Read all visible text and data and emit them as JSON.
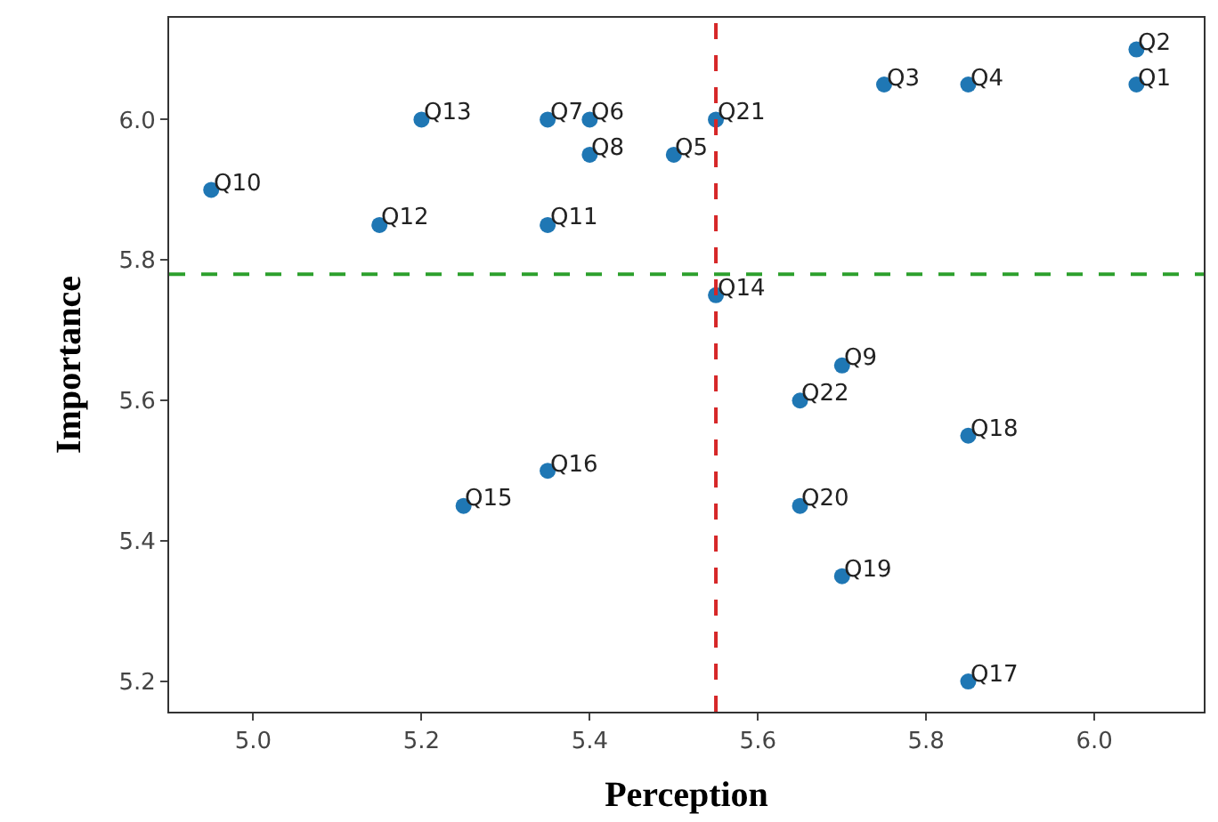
{
  "chart_data": {
    "type": "scatter",
    "xlabel": "Perception",
    "ylabel": "Importance",
    "x": [
      6.05,
      6.05,
      5.75,
      5.85,
      5.5,
      5.4,
      5.35,
      5.4,
      5.7,
      4.95,
      5.35,
      5.15,
      5.2,
      5.55,
      5.25,
      5.35,
      5.85,
      5.85,
      5.7,
      5.65,
      5.55,
      5.65
    ],
    "series": [
      {
        "color": "#1f77b4",
        "values": [
          6.05,
          6.1,
          6.05,
          6.05,
          5.95,
          6.0,
          6.0,
          5.95,
          5.65,
          5.9,
          5.85,
          5.85,
          6.0,
          5.75,
          5.45,
          5.5,
          5.2,
          5.55,
          5.35,
          5.45,
          6.0,
          5.6
        ]
      }
    ],
    "annotations": [
      {
        "text": "Q1",
        "x": 6.05,
        "y": 6.05
      },
      {
        "text": "Q2",
        "x": 6.05,
        "y": 6.1
      },
      {
        "text": "Q3",
        "x": 5.75,
        "y": 6.05
      },
      {
        "text": "Q4",
        "x": 5.85,
        "y": 6.05
      },
      {
        "text": "Q5",
        "x": 5.5,
        "y": 5.95
      },
      {
        "text": "Q6",
        "x": 5.4,
        "y": 6.0
      },
      {
        "text": "Q7",
        "x": 5.35,
        "y": 6.0
      },
      {
        "text": "Q8",
        "x": 5.4,
        "y": 5.95
      },
      {
        "text": "Q9",
        "x": 5.7,
        "y": 5.65
      },
      {
        "text": "Q10",
        "x": 4.95,
        "y": 5.9
      },
      {
        "text": "Q11",
        "x": 5.35,
        "y": 5.85
      },
      {
        "text": "Q12",
        "x": 5.15,
        "y": 5.85
      },
      {
        "text": "Q13",
        "x": 5.2,
        "y": 6.0
      },
      {
        "text": "Q14",
        "x": 5.55,
        "y": 5.75
      },
      {
        "text": "Q15",
        "x": 5.25,
        "y": 5.45
      },
      {
        "text": "Q16",
        "x": 5.35,
        "y": 5.5
      },
      {
        "text": "Q17",
        "x": 5.85,
        "y": 5.2
      },
      {
        "text": "Q18",
        "x": 5.85,
        "y": 5.55
      },
      {
        "text": "Q19",
        "x": 5.7,
        "y": 5.35
      },
      {
        "text": "Q20",
        "x": 5.65,
        "y": 5.45
      },
      {
        "text": "Q21",
        "x": 5.55,
        "y": 6.0
      },
      {
        "text": "Q22",
        "x": 5.65,
        "y": 5.6
      }
    ],
    "ref_lines": [
      {
        "axis": "x",
        "value": 5.55,
        "color": "#d62728",
        "line_style": "dashed"
      },
      {
        "axis": "y",
        "value": 5.78,
        "color": "#2ca02c",
        "line_style": "dashed"
      }
    ],
    "xlim": [
      4.9,
      6.13
    ],
    "ylim": [
      5.157,
      6.145
    ],
    "xticks": [
      {
        "value": 5.0,
        "label": "5.0"
      },
      {
        "value": 5.2,
        "label": "5.2"
      },
      {
        "value": 5.4,
        "label": "5.4"
      },
      {
        "value": 5.6,
        "label": "5.6"
      },
      {
        "value": 5.8,
        "label": "5.8"
      },
      {
        "value": 6.0,
        "label": "6.0"
      }
    ],
    "yticks": [
      {
        "value": 5.2,
        "label": "5.2"
      },
      {
        "value": 5.4,
        "label": "5.4"
      },
      {
        "value": 5.6,
        "label": "5.6"
      },
      {
        "value": 5.8,
        "label": "5.8"
      },
      {
        "value": 6.0,
        "label": "6.0"
      }
    ],
    "legend": false,
    "marker": "circle"
  }
}
